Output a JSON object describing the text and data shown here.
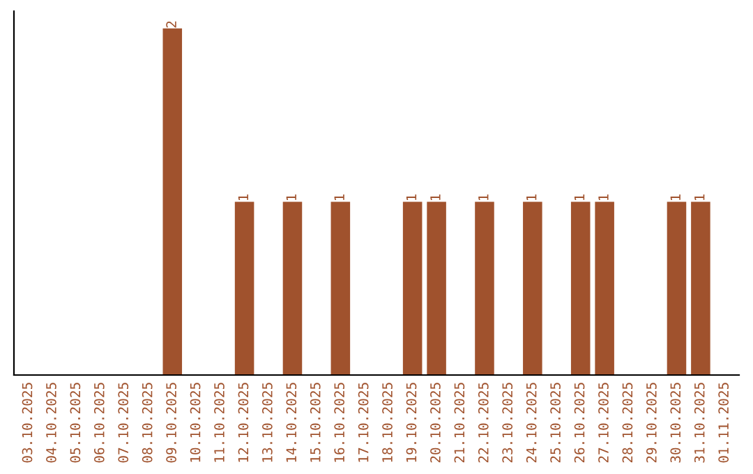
{
  "chart_data": {
    "type": "bar",
    "categories": [
      "03.10.2025",
      "04.10.2025",
      "05.10.2025",
      "06.10.2025",
      "07.10.2025",
      "08.10.2025",
      "09.10.2025",
      "10.10.2025",
      "11.10.2025",
      "12.10.2025",
      "13.10.2025",
      "14.10.2025",
      "15.10.2025",
      "16.10.2025",
      "17.10.2025",
      "18.10.2025",
      "19.10.2025",
      "20.10.2025",
      "21.10.2025",
      "22.10.2025",
      "23.10.2025",
      "24.10.2025",
      "25.10.2025",
      "26.10.2025",
      "27.10.2025",
      "28.10.2025",
      "29.10.2025",
      "30.10.2025",
      "31.10.2025",
      "01.11.2025"
    ],
    "values": [
      0,
      0,
      0,
      0,
      0,
      0,
      2,
      0,
      0,
      1,
      0,
      1,
      0,
      1,
      0,
      0,
      1,
      1,
      0,
      1,
      0,
      1,
      0,
      1,
      1,
      0,
      0,
      1,
      1,
      0
    ],
    "value_labels": [
      null,
      null,
      null,
      null,
      null,
      null,
      "2",
      null,
      null,
      "1",
      null,
      "1",
      null,
      "1",
      null,
      null,
      "1",
      "1",
      null,
      "1",
      null,
      "1",
      null,
      "1",
      "1",
      null,
      null,
      "1",
      "1",
      null
    ],
    "color": "#a0522d",
    "tick_labels": "x",
    "grid": false,
    "legend": false
  }
}
